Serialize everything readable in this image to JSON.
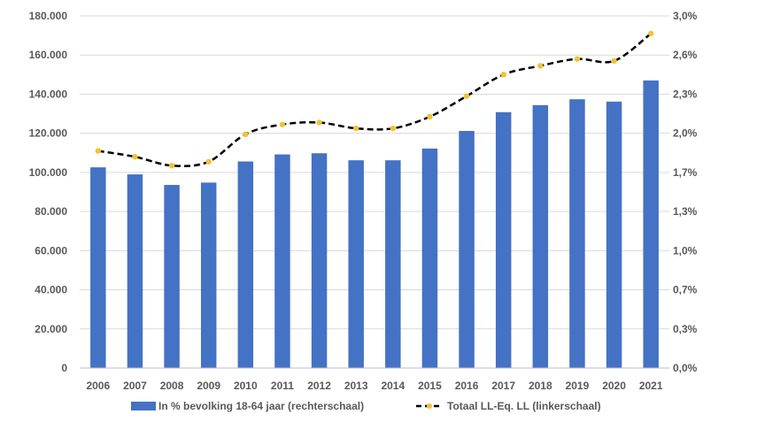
{
  "chart_data": {
    "type": "bar",
    "title": "",
    "x": [
      "2006",
      "2007",
      "2008",
      "2009",
      "2010",
      "2011",
      "2012",
      "2013",
      "2014",
      "2015",
      "2016",
      "2017",
      "2018",
      "2019",
      "2020",
      "2021"
    ],
    "left_axis": {
      "range": [
        0,
        180000
      ],
      "ticks": [
        0,
        20000,
        40000,
        60000,
        80000,
        100000,
        120000,
        140000,
        160000,
        180000
      ],
      "tick_labels": [
        "0",
        "20.000",
        "40.000",
        "60.000",
        "80.000",
        "100.000",
        "120.000",
        "140.000",
        "160.000",
        "180.000"
      ]
    },
    "right_axis": {
      "range": [
        0,
        3.0
      ],
      "ticks": [
        0,
        0.3,
        0.7,
        1.0,
        1.3,
        1.7,
        2.0,
        2.3,
        2.6,
        3.0
      ],
      "tick_labels": [
        "0,0%",
        "0,3%",
        "0,7%",
        "1,0%",
        "1,3%",
        "1,7%",
        "2,0%",
        "2,3%",
        "2,6%",
        "3,0%"
      ]
    },
    "grid": "horizontal",
    "legend_position": "bottom",
    "series": [
      {
        "name": "In % bevolking 18-64 jaar (rechterschaal)",
        "type": "bar",
        "axis": "right",
        "color": "#4472C4",
        "values": [
          1.71,
          1.65,
          1.56,
          1.58,
          1.76,
          1.82,
          1.83,
          1.77,
          1.77,
          1.87,
          2.02,
          2.18,
          2.24,
          2.29,
          2.27,
          2.45
        ]
      },
      {
        "name": "Totaal LL-Eq. LL (linkerschaal)",
        "type": "line",
        "axis": "left",
        "color": "#000000",
        "marker_color": "#F2C233",
        "line_style": "dashed",
        "values": [
          111000,
          108000,
          103500,
          105500,
          119500,
          124500,
          125500,
          122500,
          122500,
          128500,
          139000,
          150000,
          154500,
          158000,
          157000,
          171000
        ]
      }
    ]
  }
}
